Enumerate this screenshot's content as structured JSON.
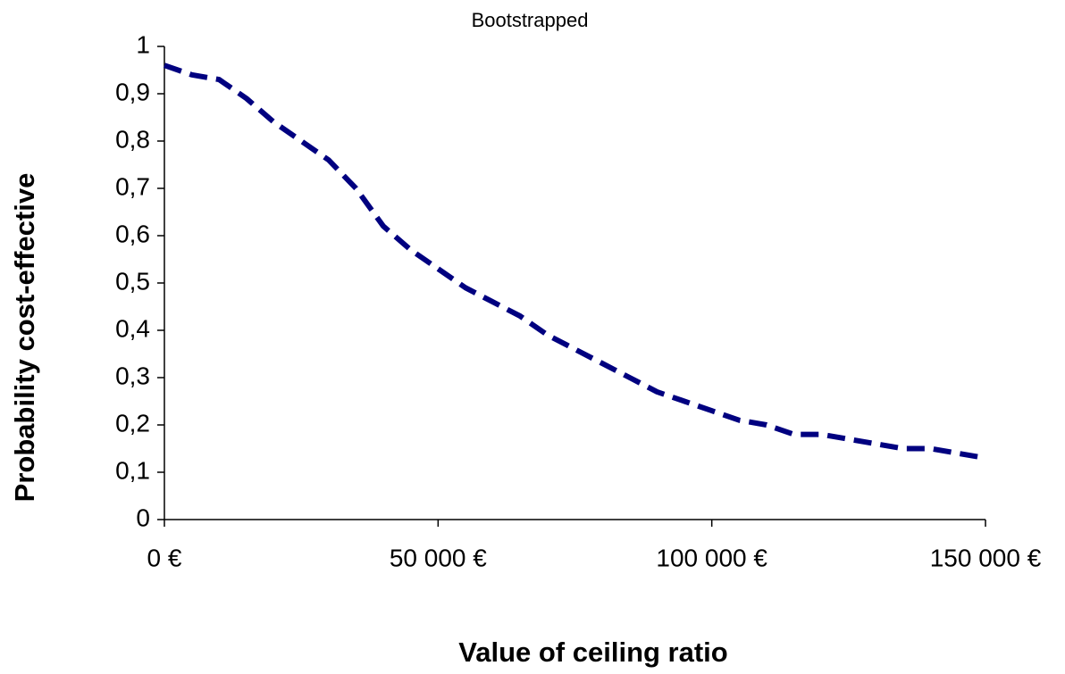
{
  "chart_data": {
    "type": "line",
    "title": "Bootstrapped",
    "xlabel": "Value of ceiling ratio",
    "ylabel": "Probability cost-effective",
    "x": [
      0,
      5000,
      10000,
      15000,
      20000,
      25000,
      30000,
      35000,
      40000,
      45000,
      50000,
      55000,
      60000,
      65000,
      70000,
      75000,
      80000,
      85000,
      90000,
      95000,
      100000,
      105000,
      110000,
      115000,
      120000,
      125000,
      130000,
      135000,
      140000,
      145000,
      150000
    ],
    "series": [
      {
        "name": "Bootstrapped",
        "color": "#000080",
        "dashed": true,
        "values": [
          0.96,
          0.94,
          0.93,
          0.89,
          0.84,
          0.8,
          0.76,
          0.7,
          0.62,
          0.57,
          0.53,
          0.49,
          0.46,
          0.43,
          0.39,
          0.36,
          0.33,
          0.3,
          0.27,
          0.25,
          0.23,
          0.21,
          0.2,
          0.18,
          0.18,
          0.17,
          0.16,
          0.15,
          0.15,
          0.14,
          0.13
        ]
      }
    ],
    "xlim": [
      0,
      150000
    ],
    "xticks": [
      {
        "value": 0,
        "label": "0 €"
      },
      {
        "value": 50000,
        "label": "50 000 €"
      },
      {
        "value": 100000,
        "label": "100 000 €"
      },
      {
        "value": 150000,
        "label": "150 000 €"
      }
    ],
    "ylim": [
      0,
      1
    ],
    "yticks": [
      0,
      {
        "value": 0.1,
        "label": "0,1"
      },
      {
        "value": 0.2,
        "label": "0,2"
      },
      {
        "value": 0.3,
        "label": "0,3"
      },
      {
        "value": 0.4,
        "label": "0,4"
      },
      {
        "value": 0.5,
        "label": "0,5"
      },
      {
        "value": 0.6,
        "label": "0,6"
      },
      {
        "value": 0.7,
        "label": "0,7"
      },
      {
        "value": 0.8,
        "label": "0,8"
      },
      {
        "value": 0.9,
        "label": "0,9"
      },
      1
    ],
    "grid": false,
    "legend": false
  }
}
